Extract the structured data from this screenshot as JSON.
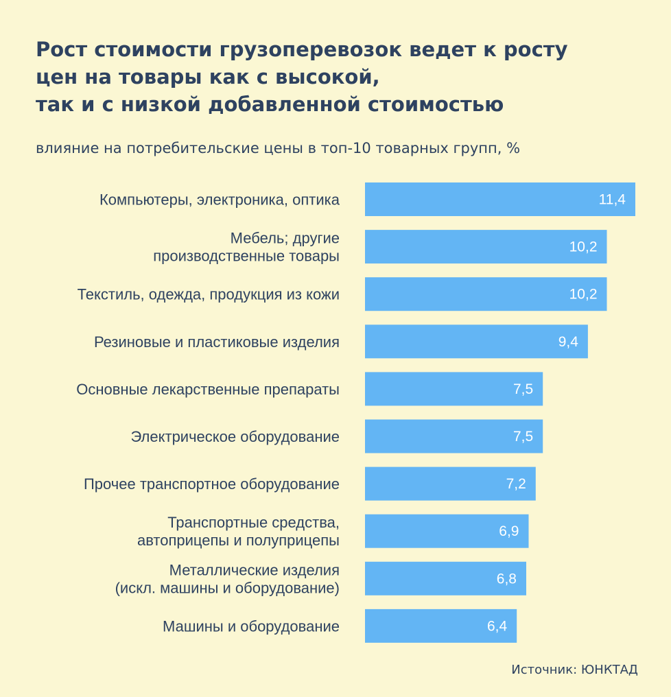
{
  "title_lines": [
    "Рост стоимости грузоперевозок ведет к росту",
    "цен на товары как с высокой,",
    "так и с низкой добавленной стоимостью"
  ],
  "subtitle": "влияние на потребительские цены в топ-10 товарных групп, %",
  "source": "Источник: ЮНКТАД",
  "colors": {
    "background": "#fbf7d3",
    "bar": "#63b5f4",
    "text": "#2e4260",
    "value_text": "#ffffff"
  },
  "chart_data": {
    "type": "bar",
    "orientation": "horizontal",
    "title": "Рост стоимости грузоперевозок ведет к росту цен на товары как с высокой, так и с низкой добавленной стоимостью",
    "subtitle": "влияние на потребительские цены в топ-10 товарных групп, %",
    "categories": [
      [
        "Компьютеры, электроника, оптика"
      ],
      [
        "Мебель; другие",
        "производственные товары"
      ],
      [
        "Текстиль, одежда, продукция из кожи"
      ],
      [
        "Резиновые и пластиковые изделия"
      ],
      [
        "Основные лекарственные препараты"
      ],
      [
        "Электрическое оборудование"
      ],
      [
        "Прочее транспортное оборудование"
      ],
      [
        "Транспортные средства,",
        "автоприцепы и полуприцепы"
      ],
      [
        "Металлические изделия",
        "(искл. машины и оборудование)"
      ],
      [
        "Машины и оборудование"
      ]
    ],
    "values": [
      11.4,
      10.2,
      10.2,
      9.4,
      7.5,
      7.5,
      7.2,
      6.9,
      6.8,
      6.4
    ],
    "value_labels": [
      "11,4",
      "10,2",
      "10,2",
      "9,4",
      "7,5",
      "7,5",
      "7,2",
      "6,9",
      "6,8",
      "6,4"
    ],
    "xlim": [
      0,
      11.4
    ],
    "grid": false,
    "legend": "none"
  }
}
